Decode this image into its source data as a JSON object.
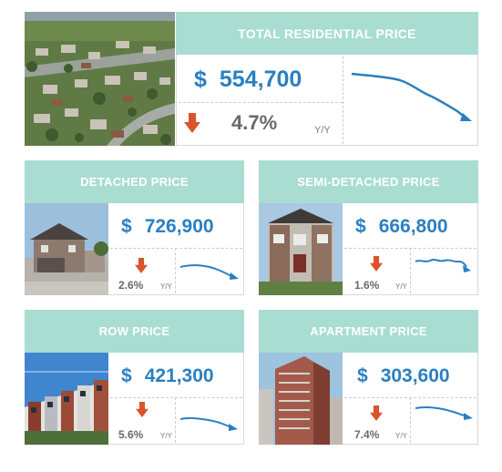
{
  "colors": {
    "header_bg": "#a9ddd1",
    "price_blue": "#2b7fc1",
    "arrow_red": "#d9532b",
    "pct_gray": "#666b6a"
  },
  "total": {
    "title": "TOTAL RESIDENTIAL PRICE",
    "currency": "$",
    "price": "554,700",
    "change": "4.7%",
    "change_label": "Y/Y",
    "direction_icon": "arrow-down-icon"
  },
  "detached": {
    "title": "DETACHED PRICE",
    "currency": "$",
    "price": "726,900",
    "change": "2.6%",
    "change_label": "Y/Y",
    "direction_icon": "arrow-down-icon"
  },
  "semi": {
    "title": "SEMI-DETACHED PRICE",
    "currency": "$",
    "price": "666,800",
    "change": "1.6%",
    "change_label": "Y/Y",
    "direction_icon": "arrow-down-icon"
  },
  "row": {
    "title": "ROW PRICE",
    "currency": "$",
    "price": "421,300",
    "change": "5.6%",
    "change_label": "Y/Y",
    "direction_icon": "arrow-down-icon"
  },
  "apartment": {
    "title": "APARTMENT PRICE",
    "currency": "$",
    "price": "303,600",
    "change": "7.4%",
    "change_label": "Y/Y",
    "direction_icon": "arrow-down-icon"
  }
}
